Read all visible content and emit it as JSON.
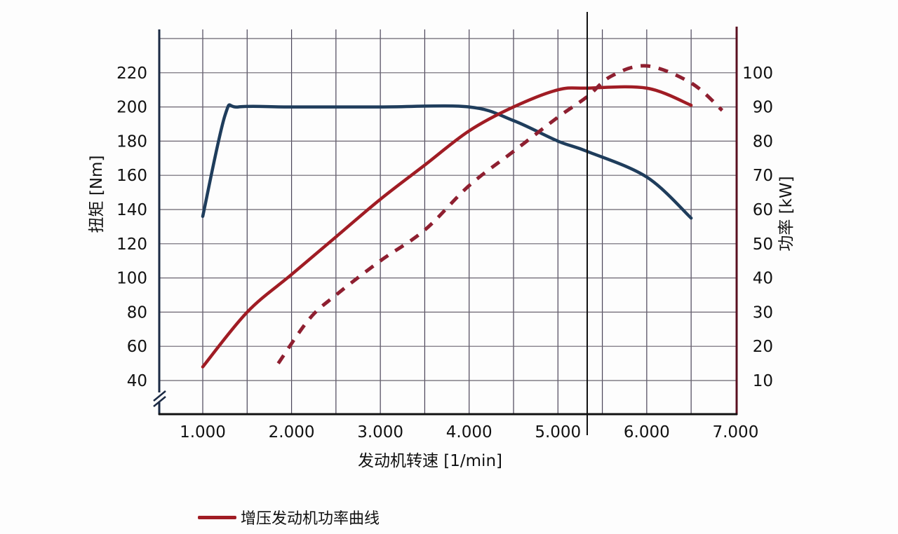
{
  "chart_data": {
    "type": "line",
    "title": "",
    "xlabel": "发动机转速 [1/min]",
    "ylabel_left": "扭矩 [Nm]",
    "ylabel_right": "功率 [kW]",
    "x_ticks": [
      "1.000",
      "2.000",
      "3.000",
      "4.000",
      "5.000",
      "6.000",
      "7.000"
    ],
    "y_left_ticks": [
      "220",
      "200",
      "180",
      "160",
      "140",
      "120",
      "100",
      "80",
      "60",
      "40"
    ],
    "y_right_ticks": [
      "100",
      "90",
      "80",
      "70",
      "60",
      "50",
      "40",
      "30",
      "20",
      "10"
    ],
    "xlim": [
      500,
      7000
    ],
    "ylim_left": [
      30,
      240
    ],
    "ylim_right": [
      5,
      110
    ],
    "grid": true,
    "axis_break_left": true,
    "marker_line_rpm": 5330,
    "legend": {
      "position": "bottom-left",
      "entries": [
        "增压发动机功率曲线"
      ]
    },
    "series": [
      {
        "name": "扭矩 (Torque)",
        "axis": "left",
        "unit": "Nm",
        "color": "#1f3d5c",
        "style": "solid",
        "x": [
          1000,
          1250,
          1400,
          2000,
          3000,
          4000,
          4500,
          5000,
          5330,
          6000,
          6500
        ],
        "y": [
          136,
          195,
          200,
          200,
          200,
          200,
          192,
          180,
          174,
          159,
          135
        ]
      },
      {
        "name": "增压发动机功率曲线",
        "axis": "right",
        "unit": "kW",
        "color": "#a01c24",
        "style": "solid",
        "x": [
          1000,
          1500,
          2000,
          2500,
          3000,
          3500,
          4000,
          4500,
          5000,
          5330,
          6000,
          6500
        ],
        "y": [
          14,
          30,
          41,
          52,
          63,
          73,
          83,
          90,
          95,
          95.5,
          95.5,
          90.5
        ]
      },
      {
        "name": "功率曲线 (dashed)",
        "axis": "right",
        "unit": "kW",
        "color": "#8e1f30",
        "style": "dashed",
        "x": [
          1850,
          2200,
          2500,
          3000,
          3500,
          4000,
          4500,
          5000,
          5330,
          5600,
          6000,
          6500,
          6850
        ],
        "y": [
          15,
          28,
          35,
          45,
          54,
          67,
          77,
          87,
          93,
          99,
          102,
          97,
          89
        ]
      }
    ]
  }
}
